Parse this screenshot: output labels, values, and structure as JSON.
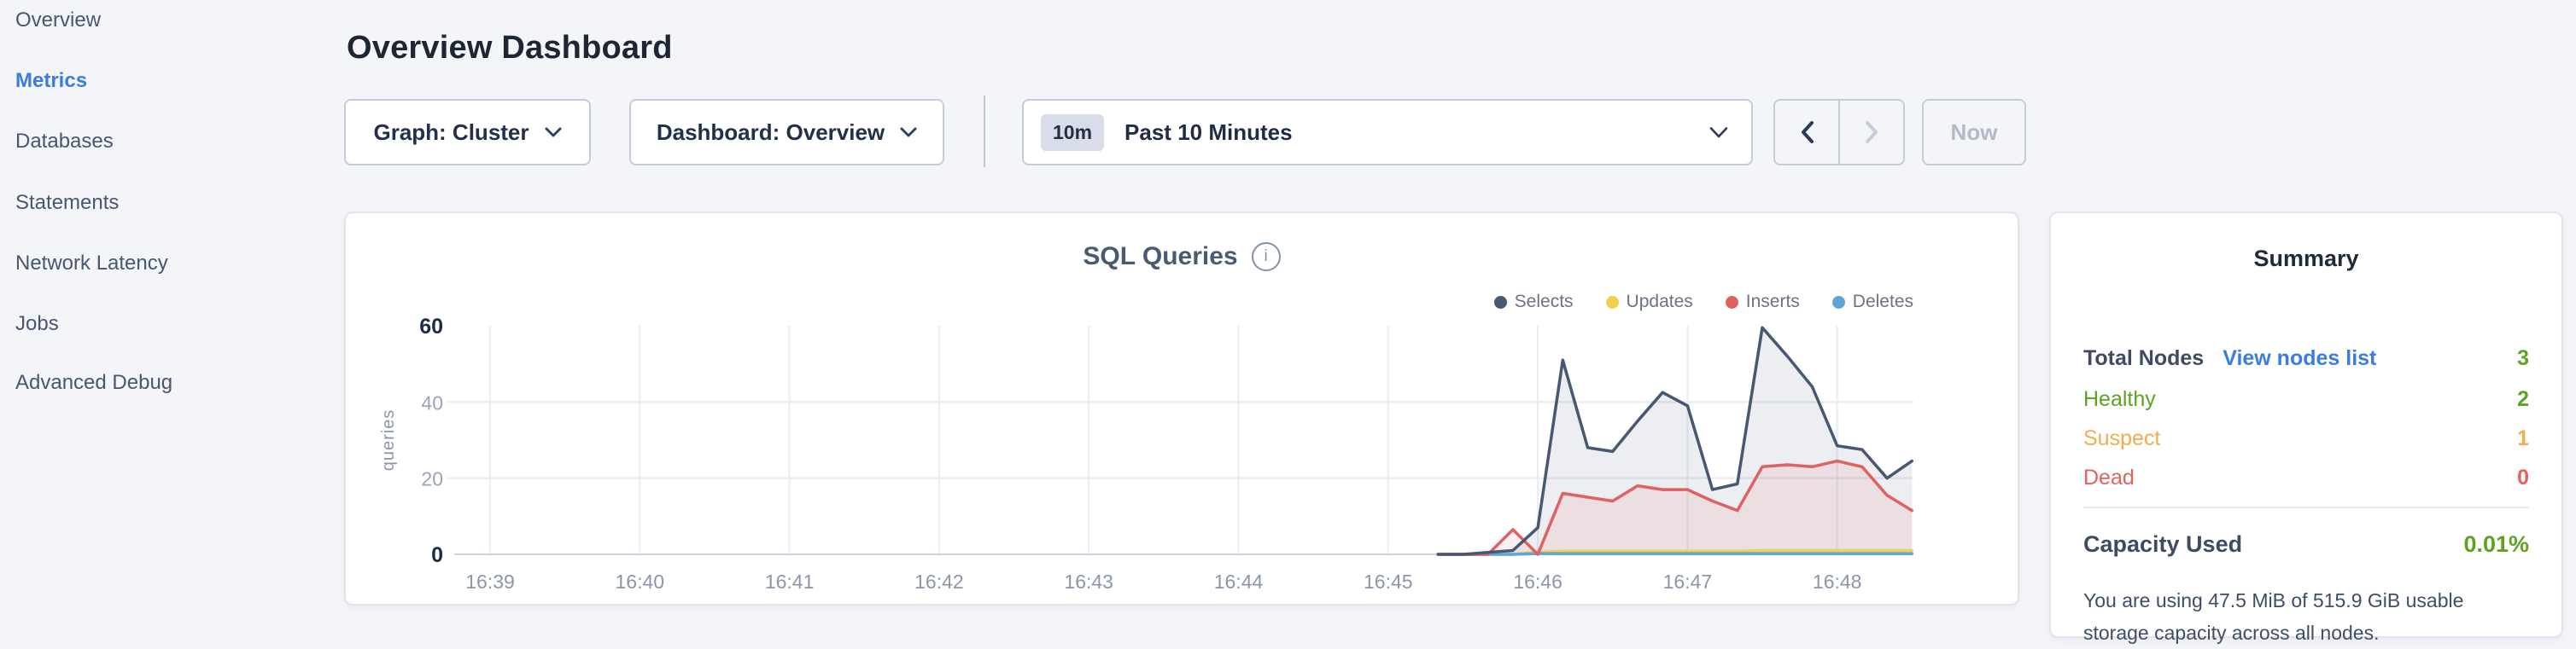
{
  "sidebar": {
    "items": [
      {
        "label": "Overview",
        "active": false
      },
      {
        "label": "Metrics",
        "active": true
      },
      {
        "label": "Databases",
        "active": false
      },
      {
        "label": "Statements",
        "active": false
      },
      {
        "label": "Network Latency",
        "active": false
      },
      {
        "label": "Jobs",
        "active": false
      },
      {
        "label": "Advanced Debug",
        "active": false
      }
    ]
  },
  "header": {
    "title": "Overview Dashboard"
  },
  "toolbar": {
    "graph_dropdown_label": "Graph: Cluster",
    "dashboard_dropdown_label": "Dashboard: Overview",
    "time_picker": {
      "badge": "10m",
      "label": "Past 10 Minutes"
    },
    "now_label": "Now"
  },
  "icons": {
    "info_glyph": "i"
  },
  "chart_card": {
    "title": "SQL Queries"
  },
  "chart_data": {
    "type": "area",
    "title": "SQL Queries",
    "ylabel": "queries",
    "ylim": [
      0,
      60
    ],
    "yticks": [
      0,
      20,
      40,
      60
    ],
    "grid": true,
    "legend_position": "top-right",
    "x_tick_labels": [
      "16:39",
      "16:40",
      "16:41",
      "16:42",
      "16:43",
      "16:44",
      "16:45",
      "16:46",
      "16:47",
      "16:48"
    ],
    "sample_interval_seconds": 10,
    "x_times": [
      "16:45:20",
      "16:45:30",
      "16:45:40",
      "16:45:50",
      "16:46:00",
      "16:46:10",
      "16:46:20",
      "16:46:30",
      "16:46:40",
      "16:46:50",
      "16:47:00",
      "16:47:10",
      "16:47:20",
      "16:47:30",
      "16:47:40",
      "16:47:50",
      "16:48:00",
      "16:48:10",
      "16:48:20",
      "16:48:30"
    ],
    "data_start_offset_minutes": 6.3333,
    "series": [
      {
        "name": "Selects",
        "color": "#475872",
        "fill": "rgba(72,89,116,0.10)",
        "values": [
          0,
          0,
          0.5,
          1,
          7,
          51,
          28,
          27,
          35,
          42.5,
          39,
          17,
          18.5,
          59.5,
          52,
          44,
          28.5,
          27.5,
          20,
          24.5
        ]
      },
      {
        "name": "Updates",
        "color": "#f2cf4d",
        "fill": null,
        "values": [
          0,
          0,
          0,
          0,
          0.6,
          0.8,
          0.8,
          0.8,
          0.8,
          0.8,
          0.8,
          0.8,
          0.8,
          1,
          1,
          1,
          1,
          1,
          1,
          1
        ]
      },
      {
        "name": "Inserts",
        "color": "#e06161",
        "fill": "rgba(224,97,97,0.10)",
        "values": [
          0,
          0,
          0,
          6.5,
          0,
          16,
          15,
          14,
          18,
          17,
          17,
          14,
          11.5,
          23,
          23.5,
          23,
          24.5,
          23,
          15.5,
          11.5
        ]
      },
      {
        "name": "Deletes",
        "color": "#5fa5d5",
        "fill": null,
        "values": [
          0,
          0,
          0,
          0,
          0.2,
          0.2,
          0.2,
          0.2,
          0.2,
          0.2,
          0.2,
          0.2,
          0.2,
          0.2,
          0.2,
          0.2,
          0.2,
          0.2,
          0.2,
          0.2
        ]
      }
    ]
  },
  "summary": {
    "title": "Summary",
    "total_nodes": {
      "label": "Total Nodes",
      "link": "View nodes list",
      "value": "3",
      "value_color": "#5ca322"
    },
    "statuses": [
      {
        "label": "Healthy",
        "value": "2",
        "color": "#5ca322"
      },
      {
        "label": "Suspect",
        "value": "1",
        "color": "#f0ad4e"
      },
      {
        "label": "Dead",
        "value": "0",
        "color": "#e5615c"
      }
    ],
    "capacity": {
      "label": "Capacity Used",
      "value": "0.01%",
      "value_color": "#5ca322",
      "description": "You are using 47.5 MiB of 515.9 GiB usable storage capacity across all nodes."
    }
  },
  "colors": {
    "accent_blue": "#3b7ce0",
    "green": "#5ca322",
    "orange": "#f0ad4e",
    "red": "#e5615c"
  }
}
